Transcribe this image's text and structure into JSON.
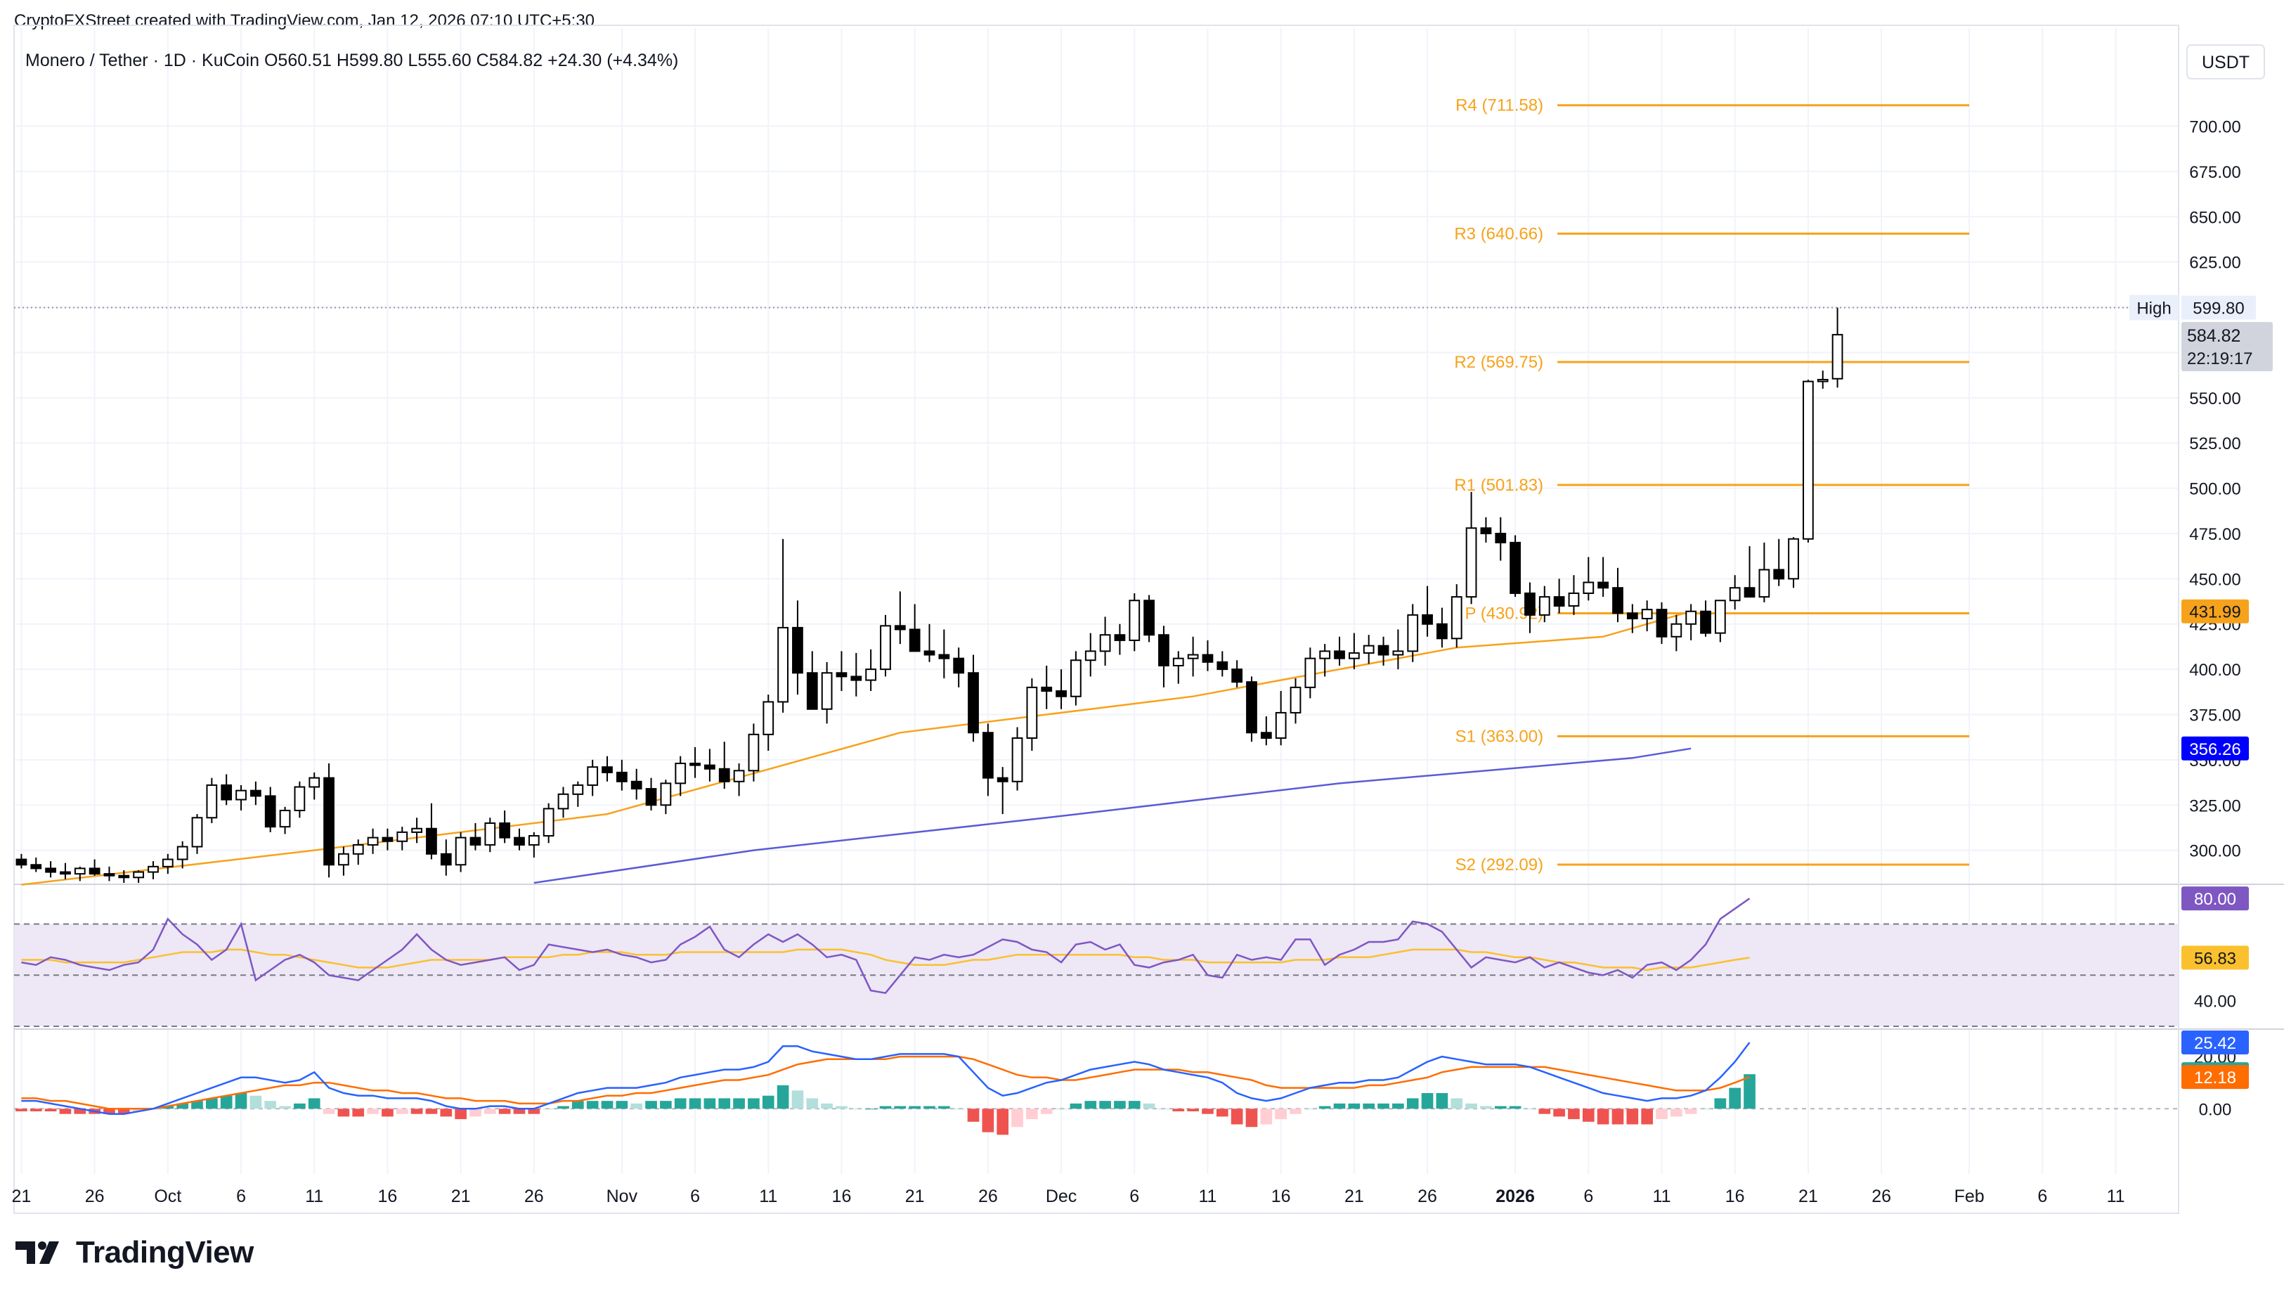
{
  "attribution": "CryptoFXStreet created with TradingView.com, Jan 12, 2026 07:10 UTC+5:30",
  "logo_text": "TradingView",
  "logo_icon": "tradingview-logo-icon",
  "colors": {
    "up": "#ffffff",
    "down": "#000000",
    "orange": "#f7a21b",
    "blue_ema": "#5b5bd6",
    "rsi_line": "#7e57c2",
    "rsi_band": "#ede7f6",
    "macd": "#2962ff",
    "signal": "#ff6d00",
    "hist_up_strong": "#26a69a",
    "hist_up_weak": "#b2dfdb",
    "hist_down_strong": "#ef5350",
    "hist_down_weak": "#ffcdd2"
  },
  "chart_data": {
    "type": "candlestick",
    "legend": {
      "symbol": "Monero / Tether · 1D · KuCoin",
      "o_label": "O",
      "open": "560.51",
      "h_label": "H",
      "high": "599.80",
      "l_label": "L",
      "low": "555.60",
      "c_label": "C",
      "close": "584.82",
      "change": "+24.30 (+4.34%)"
    },
    "currency": "USDT",
    "ylim": [
      282,
      727
    ],
    "yticks": [
      "300.00",
      "325.00",
      "350.00",
      "375.00",
      "400.00",
      "425.00",
      "450.00",
      "475.00",
      "500.00",
      "525.00",
      "550.00",
      "575.00",
      "600.00",
      "625.00",
      "650.00",
      "675.00",
      "700.00"
    ],
    "xticks": [
      {
        "label": "21",
        "x": 20
      },
      {
        "label": "26",
        "x": 25
      },
      {
        "label": "Oct",
        "x": 30
      },
      {
        "label": "6",
        "x": 35
      },
      {
        "label": "11",
        "x": 40
      },
      {
        "label": "16",
        "x": 45
      },
      {
        "label": "21",
        "x": 50
      },
      {
        "label": "26",
        "x": 55
      },
      {
        "label": "Nov",
        "x": 61
      },
      {
        "label": "6",
        "x": 66
      },
      {
        "label": "11",
        "x": 71
      },
      {
        "label": "16",
        "x": 76
      },
      {
        "label": "21",
        "x": 81
      },
      {
        "label": "26",
        "x": 86
      },
      {
        "label": "Dec",
        "x": 91
      },
      {
        "label": "6",
        "x": 96
      },
      {
        "label": "11",
        "x": 101
      },
      {
        "label": "16",
        "x": 106
      },
      {
        "label": "21",
        "x": 111
      },
      {
        "label": "26",
        "x": 116
      },
      {
        "label": "2026",
        "x": 122,
        "bold": true
      },
      {
        "label": "6",
        "x": 127
      },
      {
        "label": "11",
        "x": 132
      },
      {
        "label": "16",
        "x": 137
      },
      {
        "label": "21",
        "x": 142
      },
      {
        "label": "26",
        "x": 147
      },
      {
        "label": "Feb",
        "x": 153
      },
      {
        "label": "6",
        "x": 158
      },
      {
        "label": "11",
        "x": 163
      }
    ],
    "candles_start_x": 20,
    "candles": [
      [
        295,
        298,
        290,
        292
      ],
      [
        292,
        296,
        288,
        290
      ],
      [
        290,
        294,
        285,
        288
      ],
      [
        288,
        293,
        284,
        287
      ],
      [
        287,
        291,
        283,
        290
      ],
      [
        290,
        295,
        286,
        287
      ],
      [
        287,
        291,
        283,
        286
      ],
      [
        286,
        289,
        282,
        285
      ],
      [
        285,
        289,
        282,
        288
      ],
      [
        288,
        294,
        284,
        291
      ],
      [
        291,
        298,
        287,
        295
      ],
      [
        295,
        305,
        290,
        302
      ],
      [
        302,
        320,
        298,
        318
      ],
      [
        318,
        340,
        315,
        336
      ],
      [
        336,
        342,
        325,
        328
      ],
      [
        328,
        336,
        322,
        333
      ],
      [
        333,
        338,
        325,
        330
      ],
      [
        330,
        335,
        310,
        313
      ],
      [
        313,
        324,
        309,
        322
      ],
      [
        322,
        338,
        318,
        335
      ],
      [
        335,
        343,
        328,
        340
      ],
      [
        340,
        348,
        285,
        292
      ],
      [
        292,
        302,
        286,
        298
      ],
      [
        298,
        306,
        292,
        303
      ],
      [
        303,
        312,
        298,
        307
      ],
      [
        307,
        312,
        300,
        305
      ],
      [
        305,
        313,
        300,
        310
      ],
      [
        310,
        318,
        304,
        312
      ],
      [
        312,
        326,
        295,
        298
      ],
      [
        298,
        306,
        286,
        292
      ],
      [
        292,
        310,
        288,
        307
      ],
      [
        307,
        315,
        300,
        303
      ],
      [
        303,
        318,
        299,
        315
      ],
      [
        315,
        322,
        304,
        307
      ],
      [
        307,
        312,
        300,
        303
      ],
      [
        303,
        310,
        296,
        308
      ],
      [
        308,
        326,
        304,
        323
      ],
      [
        323,
        335,
        318,
        331
      ],
      [
        331,
        338,
        324,
        336
      ],
      [
        336,
        350,
        330,
        346
      ],
      [
        346,
        352,
        338,
        343
      ],
      [
        343,
        350,
        333,
        338
      ],
      [
        338,
        345,
        328,
        334
      ],
      [
        334,
        340,
        322,
        325
      ],
      [
        325,
        339,
        320,
        337
      ],
      [
        337,
        352,
        330,
        348
      ],
      [
        348,
        357,
        340,
        347
      ],
      [
        347,
        356,
        338,
        345
      ],
      [
        345,
        360,
        334,
        338
      ],
      [
        338,
        348,
        330,
        344
      ],
      [
        344,
        370,
        338,
        364
      ],
      [
        364,
        386,
        355,
        382
      ],
      [
        382,
        472,
        376,
        423
      ],
      [
        423,
        438,
        386,
        398
      ],
      [
        398,
        410,
        380,
        378
      ],
      [
        378,
        404,
        370,
        398
      ],
      [
        398,
        410,
        388,
        396
      ],
      [
        396,
        409,
        385,
        394
      ],
      [
        394,
        411,
        388,
        400
      ],
      [
        400,
        430,
        396,
        424
      ],
      [
        424,
        443,
        414,
        422
      ],
      [
        422,
        436,
        410,
        410
      ],
      [
        410,
        425,
        404,
        408
      ],
      [
        408,
        422,
        395,
        406
      ],
      [
        406,
        412,
        390,
        398
      ],
      [
        398,
        408,
        360,
        365
      ],
      [
        365,
        370,
        330,
        340
      ],
      [
        340,
        346,
        320,
        338
      ],
      [
        338,
        368,
        333,
        362
      ],
      [
        362,
        395,
        355,
        390
      ],
      [
        390,
        402,
        378,
        388
      ],
      [
        388,
        400,
        378,
        385
      ],
      [
        385,
        410,
        380,
        405
      ],
      [
        405,
        420,
        396,
        410
      ],
      [
        410,
        429,
        402,
        419
      ],
      [
        419,
        425,
        408,
        416
      ],
      [
        416,
        442,
        410,
        438
      ],
      [
        438,
        441,
        415,
        419
      ],
      [
        419,
        424,
        390,
        402
      ],
      [
        402,
        410,
        392,
        406
      ],
      [
        406,
        418,
        396,
        408
      ],
      [
        408,
        416,
        399,
        404
      ],
      [
        404,
        410,
        396,
        400
      ],
      [
        400,
        405,
        390,
        393
      ],
      [
        393,
        396,
        360,
        365
      ],
      [
        365,
        374,
        358,
        362
      ],
      [
        362,
        388,
        358,
        376
      ],
      [
        376,
        395,
        370,
        390
      ],
      [
        390,
        412,
        384,
        406
      ],
      [
        406,
        414,
        396,
        410
      ],
      [
        410,
        418,
        402,
        406
      ],
      [
        406,
        420,
        400,
        409
      ],
      [
        409,
        419,
        403,
        413
      ],
      [
        413,
        418,
        402,
        408
      ],
      [
        408,
        422,
        400,
        410
      ],
      [
        410,
        436,
        404,
        430
      ],
      [
        430,
        446,
        418,
        425
      ],
      [
        425,
        434,
        412,
        417
      ],
      [
        417,
        447,
        412,
        440
      ],
      [
        440,
        498,
        436,
        478
      ],
      [
        478,
        484,
        470,
        475
      ],
      [
        475,
        484,
        460,
        470
      ],
      [
        470,
        474,
        440,
        442
      ],
      [
        442,
        448,
        420,
        430
      ],
      [
        430,
        446,
        426,
        440
      ],
      [
        440,
        450,
        431,
        435
      ],
      [
        435,
        452,
        430,
        442
      ],
      [
        442,
        462,
        438,
        448
      ],
      [
        448,
        462,
        440,
        445
      ],
      [
        445,
        456,
        426,
        431
      ],
      [
        431,
        436,
        420,
        428
      ],
      [
        428,
        438,
        421,
        433
      ],
      [
        433,
        437,
        414,
        418
      ],
      [
        418,
        430,
        410,
        425
      ],
      [
        425,
        436,
        416,
        432
      ],
      [
        432,
        438,
        418,
        420
      ],
      [
        420,
        438,
        415,
        438
      ],
      [
        438,
        452,
        433,
        445
      ],
      [
        445,
        468,
        440,
        440
      ],
      [
        440,
        470,
        437,
        455
      ],
      [
        455,
        472,
        446,
        450
      ],
      [
        450,
        473,
        445,
        472
      ],
      [
        472,
        560,
        470,
        559
      ],
      [
        559,
        565,
        555,
        560
      ],
      [
        560.51,
        599.8,
        555.6,
        584.82
      ]
    ],
    "pivots": [
      {
        "label": "R4 (711.58)",
        "value": 711.58
      },
      {
        "label": "R3 (640.66)",
        "value": 640.66
      },
      {
        "label": "R2 (569.75)",
        "value": 569.75
      },
      {
        "label": "R1 (501.83)",
        "value": 501.83
      },
      {
        "label": "P (430.92)",
        "value": 430.92
      },
      {
        "label": "S1 (363.00)",
        "value": 363.0
      },
      {
        "label": "S2 (292.09)",
        "value": 292.09
      }
    ],
    "pivot_x_range": [
      122,
      153
    ],
    "ema_orange": {
      "last": "431.99",
      "x": [
        20,
        40,
        60,
        80,
        100,
        110,
        118,
        128,
        134
      ],
      "y": [
        281,
        300,
        320,
        365,
        385,
        400,
        412,
        418,
        431.99
      ]
    },
    "ema_blue": {
      "last": "356.26",
      "x": [
        55,
        70,
        90,
        110,
        130,
        134
      ],
      "y": [
        282,
        300,
        318,
        337,
        351,
        356.26
      ]
    },
    "high_marker": {
      "label": "High",
      "value": "599.80"
    },
    "price_badge": {
      "price": "584.82",
      "countdown": "22:19:17"
    }
  },
  "rsi": {
    "ylim": [
      30,
      85
    ],
    "ytick": "40.00",
    "ytick_value": 40,
    "ytick_hidden": "60.00",
    "upper": 70,
    "lower": 30,
    "mid": 50,
    "last": "80.00",
    "ma_last": "56.83",
    "values": [
      55,
      54,
      57,
      56,
      54,
      53,
      52,
      54,
      55,
      60,
      72,
      66,
      62,
      56,
      60,
      70,
      48,
      52,
      56,
      58,
      55,
      50,
      49,
      48,
      52,
      56,
      60,
      66,
      60,
      56,
      54,
      55,
      56,
      57,
      52,
      54,
      62,
      61,
      60,
      59,
      60,
      58,
      57,
      55,
      56,
      62,
      65,
      69,
      60,
      57,
      62,
      66,
      63,
      66,
      62,
      57,
      58,
      56,
      44,
      43,
      50,
      57,
      56,
      58,
      57,
      58,
      61,
      64,
      63,
      60,
      59,
      55,
      62,
      63,
      60,
      62,
      54,
      53,
      55,
      56,
      58,
      50,
      49,
      58,
      56,
      57,
      56,
      64,
      64,
      54,
      58,
      60,
      63,
      63,
      64,
      71,
      70,
      67,
      60,
      53,
      57,
      56,
      55,
      57,
      53,
      55,
      53,
      51,
      50,
      52,
      49,
      54,
      55,
      52,
      56,
      62,
      72,
      76,
      80
    ]
  },
  "rsi_ma": [
    56,
    56,
    56,
    55,
    55,
    55,
    55,
    55,
    56,
    57,
    58,
    59,
    59,
    59,
    60,
    60,
    59,
    58,
    58,
    57,
    56,
    55,
    54,
    53,
    53,
    53,
    54,
    55,
    56,
    56,
    56,
    56,
    56,
    57,
    57,
    57,
    57,
    58,
    58,
    59,
    59,
    59,
    58,
    58,
    58,
    59,
    59,
    59,
    59,
    59,
    59,
    59,
    59,
    60,
    60,
    60,
    60,
    59,
    58,
    56,
    55,
    54,
    54,
    54,
    55,
    56,
    56,
    57,
    58,
    58,
    58,
    58,
    58,
    58,
    58,
    58,
    57,
    57,
    56,
    56,
    56,
    55,
    55,
    55,
    55,
    55,
    55,
    56,
    56,
    56,
    57,
    57,
    57,
    58,
    59,
    60,
    60,
    60,
    60,
    59,
    59,
    58,
    57,
    57,
    56,
    55,
    55,
    54,
    53,
    53,
    53,
    52,
    53,
    53,
    53,
    54,
    55,
    56,
    56.83
  ],
  "macd": {
    "ylim": [
      -25,
      30
    ],
    "yticks": [
      "20.00",
      "0.00"
    ],
    "ytick_values": [
      20,
      0
    ],
    "macd_last": "25.42",
    "hist_last": "13.24",
    "signal_last": "12.18",
    "macd_values": [
      3,
      3,
      2,
      1,
      0,
      -1,
      -2,
      -2,
      -1,
      0,
      2,
      4,
      6,
      8,
      10,
      12,
      12,
      11,
      10,
      11,
      14,
      8,
      6,
      5,
      5,
      4,
      4,
      4,
      3,
      1,
      0,
      0,
      1,
      1,
      0,
      0,
      2,
      4,
      6,
      7,
      8,
      8,
      8,
      9,
      10,
      12,
      13,
      14,
      15,
      15,
      16,
      18,
      24,
      24,
      22,
      21,
      20,
      19,
      19,
      20,
      21,
      21,
      21,
      21,
      20,
      14,
      8,
      5,
      6,
      8,
      10,
      11,
      13,
      15,
      16,
      17,
      18,
      17,
      15,
      14,
      13,
      12,
      10,
      6,
      4,
      3,
      4,
      6,
      8,
      9,
      10,
      10,
      11,
      11,
      12,
      15,
      18,
      20,
      19,
      18,
      17,
      17,
      17,
      16,
      14,
      12,
      10,
      8,
      6,
      5,
      4,
      3,
      4,
      4,
      5,
      7,
      12,
      18,
      25.42
    ],
    "signal_values": [
      4,
      4,
      3,
      3,
      2,
      1,
      0,
      0,
      0,
      0,
      1,
      2,
      3,
      4,
      5,
      6,
      7,
      8,
      9,
      9,
      10,
      10,
      9,
      8,
      7,
      7,
      6,
      6,
      5,
      4,
      4,
      3,
      3,
      3,
      2,
      2,
      2,
      3,
      3,
      4,
      5,
      5,
      6,
      6,
      7,
      8,
      9,
      10,
      11,
      11,
      12,
      13,
      15,
      17,
      18,
      19,
      19,
      19,
      19,
      19,
      20,
      20,
      20,
      20,
      20,
      19,
      17,
      15,
      13,
      12,
      12,
      11,
      11,
      12,
      13,
      14,
      15,
      15,
      15,
      15,
      14,
      14,
      13,
      12,
      11,
      9,
      8,
      8,
      8,
      8,
      8,
      8,
      9,
      9,
      10,
      11,
      12,
      14,
      15,
      16,
      16,
      16,
      16,
      16,
      16,
      15,
      14,
      13,
      12,
      11,
      10,
      9,
      8,
      7,
      7,
      7,
      8,
      10,
      12.18
    ]
  }
}
